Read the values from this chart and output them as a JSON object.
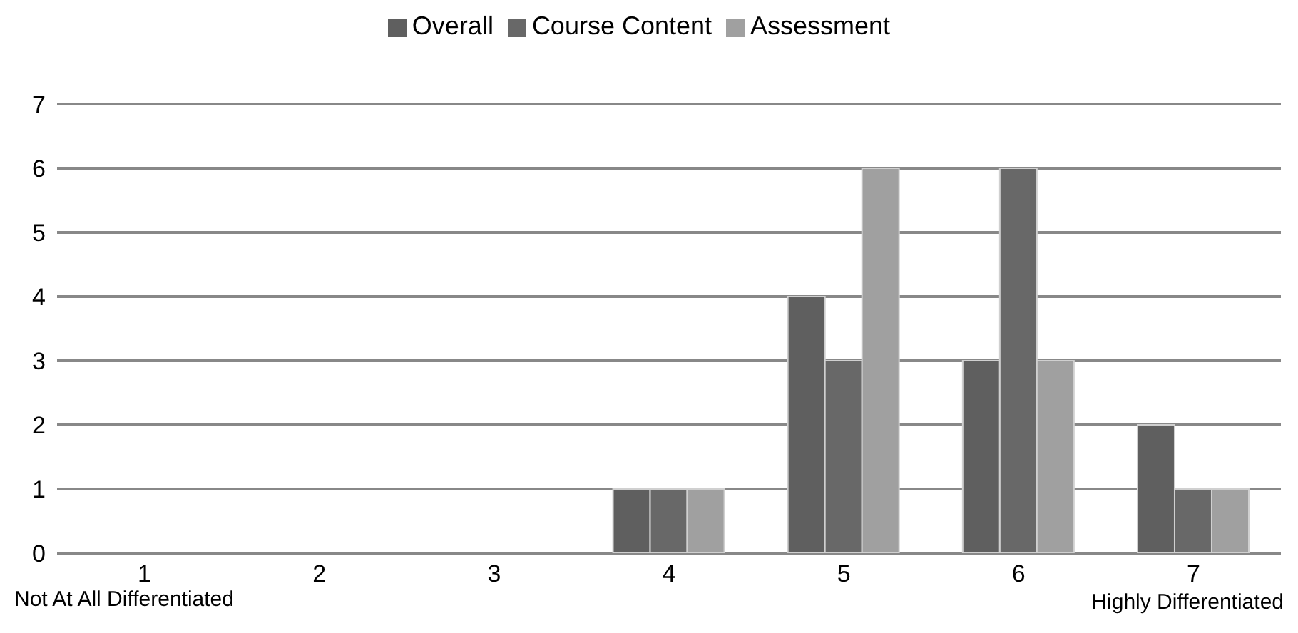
{
  "chart_data": {
    "type": "bar",
    "categories": [
      "1",
      "2",
      "3",
      "4",
      "5",
      "6",
      "7"
    ],
    "series": [
      {
        "name": "Overall",
        "color": "#5f5f5f",
        "values": [
          0,
          0,
          0,
          1,
          4,
          3,
          2
        ]
      },
      {
        "name": "Course Content",
        "color": "#686868",
        "values": [
          0,
          0,
          0,
          1,
          3,
          6,
          1
        ]
      },
      {
        "name": "Assessment",
        "color": "#a0a0a0",
        "values": [
          0,
          0,
          0,
          1,
          6,
          3,
          1
        ]
      }
    ],
    "ylim": [
      0,
      7
    ],
    "yticks": [
      0,
      1,
      2,
      3,
      4,
      5,
      6,
      7
    ],
    "grid": "y",
    "legend": "top",
    "annotations": [
      "Not At All Differentiated",
      "Highly Differentiated"
    ]
  }
}
